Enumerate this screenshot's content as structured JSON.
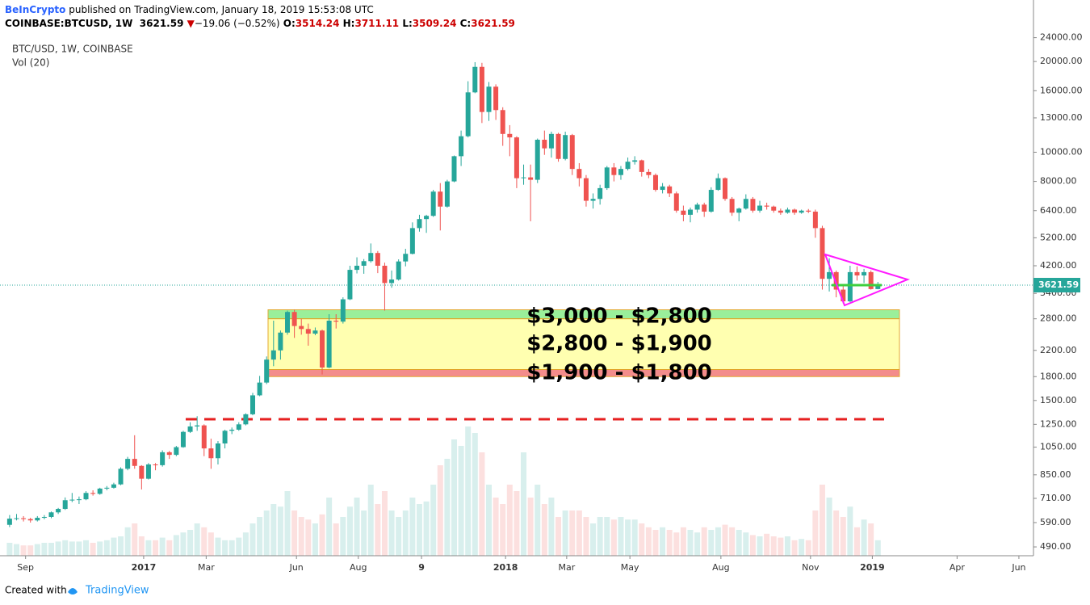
{
  "header": {
    "publisher": "BeInCrypto",
    "published": "published on TradingView.com, January 18, 2019 15:53:08 UTC",
    "symbol": "COINBASE:BTCUSD, 1W",
    "arrow": "▼",
    "change": "−19.06 (−0.52%)",
    "o": "O:",
    "h": "H:",
    "l": "L:",
    "c": "C:"
  },
  "footer": {
    "created": "Created with",
    "brand": "TradingView"
  },
  "chart_data": {
    "type": "candlestick",
    "title": "BTC/USD, 1W, COINBASE",
    "volume_label": "Vol (20)",
    "log_scale": true,
    "up_color": "#26a69a",
    "down_color": "#ef5350",
    "ylim": [
      458,
      25000
    ],
    "yticks": [
      {
        "value": 24000,
        "label": "24000.00"
      },
      {
        "value": 20000,
        "label": "20000.00"
      },
      {
        "value": 16000,
        "label": "16000.00"
      },
      {
        "value": 13000,
        "label": "13000.00"
      },
      {
        "value": 10000,
        "label": "10000.00"
      },
      {
        "value": 8000,
        "label": "8000.00"
      },
      {
        "value": 6400,
        "label": "6400.00"
      },
      {
        "value": 5200,
        "label": "5200.00"
      },
      {
        "value": 4200,
        "label": "4200.00"
      },
      {
        "value": 3400,
        "label": "3400.00"
      },
      {
        "value": 2800,
        "label": "2800.00"
      },
      {
        "value": 2200,
        "label": "2200.00"
      },
      {
        "value": 1800,
        "label": "1800.00"
      },
      {
        "value": 1500,
        "label": "1500.00"
      },
      {
        "value": 1250,
        "label": "1250.00"
      },
      {
        "value": 1050,
        "label": "1050.00"
      },
      {
        "value": 850,
        "label": "850.00"
      },
      {
        "value": 710,
        "label": "710.00"
      },
      {
        "value": 590,
        "label": "590.00"
      },
      {
        "value": 490,
        "label": "490.00"
      }
    ],
    "xlim": [
      -0.8,
      147.4
    ],
    "xticks": [
      {
        "value": 2.3,
        "label": "Sep"
      },
      {
        "value": 19.3,
        "label": "2017"
      },
      {
        "value": 28.3,
        "label": "Mar"
      },
      {
        "value": 41.3,
        "label": "Jun"
      },
      {
        "value": 50.2,
        "label": "Aug"
      },
      {
        "value": 59.3,
        "label": "9"
      },
      {
        "value": 71.4,
        "label": "2018"
      },
      {
        "value": 80.2,
        "label": "Mar"
      },
      {
        "value": 89.3,
        "label": "May"
      },
      {
        "value": 102.4,
        "label": "Aug"
      },
      {
        "value": 115.3,
        "label": "Nov"
      },
      {
        "value": 124.2,
        "label": "2019"
      },
      {
        "value": 136.4,
        "label": "Apr"
      },
      {
        "value": 145.3,
        "label": "Jun"
      }
    ],
    "open": [
      580,
      608,
      610,
      606,
      600,
      612,
      616,
      638,
      655,
      700,
      703,
      705,
      740,
      735,
      765,
      770,
      790,
      890,
      960,
      910,
      825,
      920,
      915,
      1010,
      990,
      1050,
      1180,
      1230,
      1240,
      1040,
      965,
      1080,
      1190,
      1200,
      1250,
      1350,
      1560,
      1720,
      2050,
      2200,
      2520,
      2950,
      2650,
      2590,
      2500,
      2560,
      1930,
      2760,
      2740,
      3250,
      4070,
      4200,
      4350,
      4630,
      4200,
      3680,
      3780,
      4340,
      4600,
      5600,
      6000,
      6150,
      7400,
      6600,
      8000,
      9700,
      11300,
      15800,
      19200,
      13600,
      16500,
      13800,
      11500,
      11200,
      8200,
      8250,
      8100,
      11000,
      10300,
      11500,
      9500,
      11400,
      8800,
      8200,
      6900,
      7000,
      7600,
      8900,
      8400,
      8800,
      9300,
      9400,
      8600,
      8400,
      7500,
      7700,
      7300,
      6400,
      6200,
      6450,
      6700,
      6350,
      7500,
      8200,
      7000,
      6300,
      6500,
      7000,
      6400,
      6650,
      6600,
      6400,
      6300,
      6450,
      6300,
      6400,
      6350,
      5600,
      3800,
      4000,
      3500,
      3200,
      4000,
      3900,
      4000,
      3514.24
    ],
    "high": [
      625,
      630,
      620,
      612,
      620,
      625,
      642,
      660,
      715,
      740,
      720,
      750,
      755,
      770,
      780,
      800,
      900,
      975,
      1150,
      915,
      930,
      930,
      1025,
      1020,
      1060,
      1190,
      1270,
      1330,
      1250,
      1120,
      1100,
      1200,
      1220,
      1270,
      1360,
      1590,
      1810,
      2100,
      2760,
      2560,
      2980,
      3000,
      2800,
      2700,
      2620,
      2580,
      2900,
      2900,
      3300,
      4200,
      4480,
      4420,
      4980,
      4700,
      4300,
      4050,
      4410,
      4780,
      5850,
      6200,
      6200,
      7500,
      7900,
      8100,
      9750,
      11800,
      17200,
      19900,
      19800,
      17100,
      16800,
      14100,
      12300,
      11300,
      9100,
      9100,
      11100,
      11800,
      11700,
      11600,
      11700,
      11500,
      9200,
      8400,
      7300,
      7800,
      9000,
      9200,
      9000,
      9600,
      9700,
      9450,
      8800,
      8500,
      7900,
      7800,
      7400,
      6650,
      6550,
      6800,
      6800,
      7650,
      8500,
      8250,
      7100,
      6550,
      7250,
      7100,
      6900,
      6800,
      6650,
      6500,
      6550,
      6500,
      6450,
      6480,
      6450,
      5700,
      4450,
      4050,
      3650,
      4200,
      4180,
      4100,
      4050,
      3711.11
    ],
    "low": [
      570,
      600,
      595,
      590,
      595,
      605,
      610,
      630,
      650,
      690,
      680,
      700,
      725,
      730,
      755,
      765,
      785,
      880,
      890,
      760,
      820,
      880,
      905,
      960,
      980,
      1045,
      1170,
      1190,
      980,
      890,
      920,
      1040,
      1160,
      1190,
      1240,
      1340,
      1550,
      1700,
      1950,
      2050,
      2480,
      2420,
      2480,
      2280,
      2470,
      1830,
      1920,
      2600,
      2700,
      3230,
      3960,
      3950,
      4300,
      3970,
      2980,
      3550,
      3750,
      4180,
      4580,
      5450,
      5400,
      6100,
      5500,
      6550,
      7950,
      9000,
      11200,
      15700,
      12500,
      12700,
      12800,
      10500,
      9700,
      7600,
      7800,
      5900,
      7900,
      9800,
      9600,
      9300,
      9400,
      8400,
      7700,
      6600,
      6500,
      6700,
      7500,
      8000,
      8100,
      8700,
      9100,
      8300,
      8200,
      7400,
      7300,
      7100,
      6300,
      5900,
      5850,
      6300,
      6100,
      6300,
      7450,
      6900,
      6150,
      5900,
      6450,
      6300,
      6300,
      6450,
      6300,
      6200,
      6250,
      6200,
      6250,
      6280,
      5200,
      3500,
      3450,
      3300,
      3150,
      3180,
      3750,
      3680,
      3500,
      3509.24
    ],
    "close": [
      608,
      610,
      606,
      600,
      612,
      616,
      638,
      655,
      700,
      703,
      705,
      740,
      735,
      765,
      770,
      790,
      890,
      960,
      910,
      825,
      920,
      915,
      1010,
      990,
      1050,
      1180,
      1230,
      1240,
      1040,
      965,
      1080,
      1190,
      1200,
      1250,
      1350,
      1560,
      1720,
      2050,
      2200,
      2520,
      2950,
      2650,
      2590,
      2500,
      2560,
      1930,
      2760,
      2740,
      3250,
      4070,
      4200,
      4350,
      4630,
      4200,
      3680,
      3780,
      4340,
      4600,
      5600,
      6000,
      6150,
      7400,
      6600,
      8000,
      9700,
      11300,
      15800,
      19200,
      13600,
      16500,
      13800,
      11500,
      11200,
      8200,
      8250,
      8100,
      11000,
      10300,
      11500,
      9500,
      11400,
      8800,
      8200,
      6900,
      7000,
      7600,
      8900,
      8400,
      8800,
      9300,
      9400,
      8600,
      8400,
      7500,
      7700,
      7300,
      6400,
      6200,
      6450,
      6700,
      6350,
      7500,
      8200,
      7000,
      6300,
      6500,
      7000,
      6400,
      6650,
      6600,
      6400,
      6300,
      6450,
      6300,
      6400,
      6350,
      5600,
      3800,
      4000,
      3500,
      3200,
      4000,
      3900,
      4000,
      3514.24,
      3621.59
    ],
    "volume": [
      10,
      9,
      8,
      8,
      9,
      10,
      10,
      11,
      12,
      11,
      11,
      12,
      10,
      11,
      12,
      14,
      15,
      22,
      25,
      15,
      12,
      12,
      14,
      12,
      16,
      18,
      20,
      25,
      22,
      18,
      14,
      12,
      12,
      14,
      18,
      25,
      30,
      35,
      40,
      38,
      50,
      35,
      30,
      28,
      25,
      32,
      45,
      25,
      30,
      38,
      45,
      35,
      55,
      40,
      50,
      35,
      30,
      35,
      45,
      40,
      42,
      55,
      70,
      75,
      90,
      85,
      100,
      95,
      80,
      55,
      45,
      40,
      55,
      50,
      80,
      45,
      55,
      40,
      45,
      30,
      35,
      35,
      35,
      30,
      25,
      30,
      30,
      28,
      30,
      28,
      28,
      25,
      22,
      20,
      22,
      20,
      18,
      22,
      20,
      18,
      22,
      20,
      22,
      24,
      22,
      20,
      18,
      16,
      15,
      17,
      15,
      14,
      15,
      12,
      13,
      12,
      35,
      55,
      45,
      35,
      30,
      38,
      22,
      28,
      25,
      12
    ],
    "zones": [
      {
        "label": "$3,000 - $2,800",
        "top": 3000,
        "bottom": 2800,
        "color": "#90ee90"
      },
      {
        "label": "$2,800 - $1,900",
        "top": 2800,
        "bottom": 1900,
        "color": "#ffffa8"
      },
      {
        "label": "$1,900 - $1,800",
        "top": 1900,
        "bottom": 1800,
        "color": "#f28080"
      }
    ],
    "support_level": 1300
  }
}
